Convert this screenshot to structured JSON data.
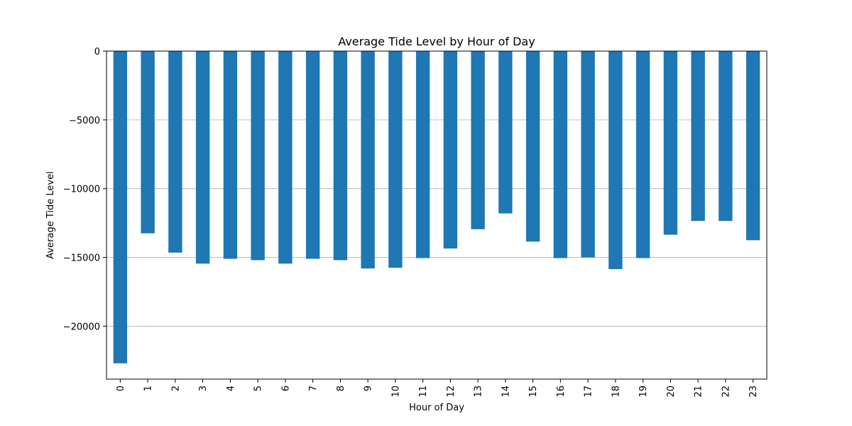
{
  "chart_data": {
    "type": "bar",
    "title": "Average Tide Level by Hour of Day",
    "xlabel": "Hour of Day",
    "ylabel": "Average Tide Level",
    "categories": [
      "0",
      "1",
      "2",
      "3",
      "4",
      "5",
      "6",
      "7",
      "8",
      "9",
      "10",
      "11",
      "12",
      "13",
      "14",
      "15",
      "16",
      "17",
      "18",
      "19",
      "20",
      "21",
      "22",
      "23"
    ],
    "values": [
      -22700,
      -13250,
      -14650,
      -15450,
      -15100,
      -15200,
      -15450,
      -15100,
      -15200,
      -15800,
      -15750,
      -15050,
      -14350,
      -12950,
      -11800,
      -13850,
      -15050,
      -15000,
      -15850,
      -15050,
      -13350,
      -12350,
      -12350,
      -13750
    ],
    "ylim": [
      -23850,
      0
    ],
    "yticks": [
      0,
      -5000,
      -10000,
      -15000,
      -20000
    ],
    "ytick_labels": [
      "0",
      "−5000",
      "−10000",
      "−15000",
      "−20000"
    ],
    "bar_color": "#1f77b4",
    "grid": "y-axis"
  }
}
